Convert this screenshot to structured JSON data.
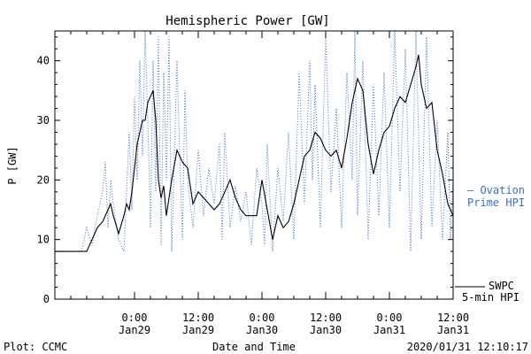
{
  "chart_data": {
    "type": "line",
    "title": "Hemispheric Power [GW]",
    "xlabel": "Date and Time",
    "ylabel": "P [GW]",
    "ylim": [
      0,
      45
    ],
    "xlim": [
      "2020-01-28 09:00",
      "2020-01-31 12:00"
    ],
    "y_ticks": [
      0,
      10,
      20,
      30,
      40
    ],
    "x_ticks": [
      {
        "x": "2020-01-29 00:00",
        "time": "0:00",
        "date": "Jan29"
      },
      {
        "x": "2020-01-29 12:00",
        "time": "12:00",
        "date": "Jan29"
      },
      {
        "x": "2020-01-30 00:00",
        "time": "0:00",
        "date": "Jan30"
      },
      {
        "x": "2020-01-30 12:00",
        "time": "12:00",
        "date": "Jan30"
      },
      {
        "x": "2020-01-31 00:00",
        "time": "0:00",
        "date": "Jan31"
      },
      {
        "x": "2020-01-31 12:00",
        "time": "12:00",
        "date": "Jan31"
      }
    ],
    "grid": false,
    "series": [
      {
        "name": "5-min HPI",
        "source": "SWPC",
        "color": "#000000",
        "style": "solid",
        "points": [
          [
            "2020-01-28 09:00",
            8
          ],
          [
            "2020-01-28 12:00",
            8
          ],
          [
            "2020-01-28 15:00",
            8
          ],
          [
            "2020-01-28 16:00",
            10
          ],
          [
            "2020-01-28 17:00",
            12
          ],
          [
            "2020-01-28 18:00",
            13
          ],
          [
            "2020-01-28 19:00",
            15
          ],
          [
            "2020-01-28 19:30",
            16
          ],
          [
            "2020-01-28 20:00",
            14
          ],
          [
            "2020-01-28 21:00",
            11
          ],
          [
            "2020-01-28 22:00",
            14
          ],
          [
            "2020-01-28 22:30",
            16
          ],
          [
            "2020-01-28 23:00",
            15
          ],
          [
            "2020-01-28 23:30",
            18
          ],
          [
            "2020-01-29 00:00",
            22
          ],
          [
            "2020-01-29 00:30",
            26
          ],
          [
            "2020-01-29 01:00",
            28
          ],
          [
            "2020-01-29 01:30",
            30
          ],
          [
            "2020-01-29 02:00",
            30
          ],
          [
            "2020-01-29 02:30",
            33
          ],
          [
            "2020-01-29 03:00",
            34
          ],
          [
            "2020-01-29 03:30",
            35
          ],
          [
            "2020-01-29 04:00",
            30
          ],
          [
            "2020-01-29 04:30",
            20
          ],
          [
            "2020-01-29 05:00",
            17
          ],
          [
            "2020-01-29 05:30",
            19
          ],
          [
            "2020-01-29 06:00",
            14
          ],
          [
            "2020-01-29 07:00",
            20
          ],
          [
            "2020-01-29 08:00",
            25
          ],
          [
            "2020-01-29 09:00",
            23
          ],
          [
            "2020-01-29 10:00",
            22
          ],
          [
            "2020-01-29 11:00",
            16
          ],
          [
            "2020-01-29 12:00",
            18
          ],
          [
            "2020-01-29 13:00",
            17
          ],
          [
            "2020-01-29 14:00",
            16
          ],
          [
            "2020-01-29 15:00",
            15
          ],
          [
            "2020-01-29 16:00",
            16
          ],
          [
            "2020-01-29 17:00",
            18
          ],
          [
            "2020-01-29 18:00",
            20
          ],
          [
            "2020-01-29 19:00",
            17
          ],
          [
            "2020-01-29 20:00",
            15
          ],
          [
            "2020-01-29 21:00",
            14
          ],
          [
            "2020-01-29 22:00",
            14
          ],
          [
            "2020-01-29 23:00",
            14
          ],
          [
            "2020-01-30 00:00",
            20
          ],
          [
            "2020-01-30 01:00",
            15
          ],
          [
            "2020-01-30 02:00",
            10
          ],
          [
            "2020-01-30 03:00",
            14
          ],
          [
            "2020-01-30 04:00",
            12
          ],
          [
            "2020-01-30 05:00",
            13
          ],
          [
            "2020-01-30 06:00",
            16
          ],
          [
            "2020-01-30 07:00",
            20
          ],
          [
            "2020-01-30 08:00",
            24
          ],
          [
            "2020-01-30 09:00",
            25
          ],
          [
            "2020-01-30 10:00",
            28
          ],
          [
            "2020-01-30 11:00",
            27
          ],
          [
            "2020-01-30 12:00",
            25
          ],
          [
            "2020-01-30 13:00",
            24
          ],
          [
            "2020-01-30 14:00",
            25
          ],
          [
            "2020-01-30 15:00",
            22
          ],
          [
            "2020-01-30 16:00",
            27
          ],
          [
            "2020-01-30 17:00",
            33
          ],
          [
            "2020-01-30 18:00",
            37
          ],
          [
            "2020-01-30 19:00",
            35
          ],
          [
            "2020-01-30 20:00",
            26
          ],
          [
            "2020-01-30 21:00",
            21
          ],
          [
            "2020-01-30 22:00",
            25
          ],
          [
            "2020-01-30 23:00",
            28
          ],
          [
            "2020-01-31 00:00",
            29
          ],
          [
            "2020-01-31 01:00",
            32
          ],
          [
            "2020-01-31 02:00",
            34
          ],
          [
            "2020-01-31 03:00",
            33
          ],
          [
            "2020-01-31 04:00",
            36
          ],
          [
            "2020-01-31 05:00",
            39
          ],
          [
            "2020-01-31 05:30",
            41
          ],
          [
            "2020-01-31 06:00",
            36
          ],
          [
            "2020-01-31 07:00",
            32
          ],
          [
            "2020-01-31 08:00",
            33
          ],
          [
            "2020-01-31 09:00",
            25
          ],
          [
            "2020-01-31 10:00",
            21
          ],
          [
            "2020-01-31 11:00",
            16
          ],
          [
            "2020-01-31 11:30",
            15
          ],
          [
            "2020-01-31 12:00",
            14
          ]
        ]
      },
      {
        "name": "Ovation Prime HPI",
        "color": "#3a6fd0",
        "style": "dotted",
        "points": [
          [
            "2020-01-28 09:00",
            8
          ],
          [
            "2020-01-28 12:00",
            8
          ],
          [
            "2020-01-28 14:00",
            8
          ],
          [
            "2020-01-28 15:00",
            12
          ],
          [
            "2020-01-28 16:00",
            9
          ],
          [
            "2020-01-28 17:00",
            14
          ],
          [
            "2020-01-28 18:00",
            18
          ],
          [
            "2020-01-28 18:30",
            23
          ],
          [
            "2020-01-28 19:00",
            12
          ],
          [
            "2020-01-28 19:30",
            20
          ],
          [
            "2020-01-28 20:00",
            16
          ],
          [
            "2020-01-28 21:00",
            10
          ],
          [
            "2020-01-28 22:00",
            8
          ],
          [
            "2020-01-28 22:30",
            18
          ],
          [
            "2020-01-28 23:00",
            28
          ],
          [
            "2020-01-28 23:30",
            15
          ],
          [
            "2020-01-29 00:00",
            34
          ],
          [
            "2020-01-29 00:30",
            20
          ],
          [
            "2020-01-29 01:00",
            40
          ],
          [
            "2020-01-29 01:30",
            24
          ],
          [
            "2020-01-29 02:00",
            45
          ],
          [
            "2020-01-29 02:30",
            30
          ],
          [
            "2020-01-29 03:00",
            12
          ],
          [
            "2020-01-29 03:30",
            40
          ],
          [
            "2020-01-29 04:00",
            18
          ],
          [
            "2020-01-29 04:30",
            44
          ],
          [
            "2020-01-29 05:00",
            9
          ],
          [
            "2020-01-29 05:30",
            38
          ],
          [
            "2020-01-29 06:00",
            20
          ],
          [
            "2020-01-29 06:30",
            44
          ],
          [
            "2020-01-29 07:00",
            8
          ],
          [
            "2020-01-29 08:00",
            40
          ],
          [
            "2020-01-29 09:00",
            10
          ],
          [
            "2020-01-29 09:30",
            35
          ],
          [
            "2020-01-29 10:00",
            20
          ],
          [
            "2020-01-29 11:00",
            12
          ],
          [
            "2020-01-29 12:00",
            25
          ],
          [
            "2020-01-29 13:00",
            14
          ],
          [
            "2020-01-29 14:00",
            22
          ],
          [
            "2020-01-29 15:00",
            16
          ],
          [
            "2020-01-29 16:00",
            26
          ],
          [
            "2020-01-29 16:30",
            10
          ],
          [
            "2020-01-29 17:00",
            28
          ],
          [
            "2020-01-29 18:00",
            12
          ],
          [
            "2020-01-29 19:00",
            19
          ],
          [
            "2020-01-29 20:00",
            13
          ],
          [
            "2020-01-29 21:00",
            18
          ],
          [
            "2020-01-29 22:00",
            9
          ],
          [
            "2020-01-29 23:00",
            22
          ],
          [
            "2020-01-30 00:00",
            16
          ],
          [
            "2020-01-30 00:30",
            9
          ],
          [
            "2020-01-30 01:00",
            26
          ],
          [
            "2020-01-30 02:00",
            8
          ],
          [
            "2020-01-30 03:00",
            22
          ],
          [
            "2020-01-30 04:00",
            13
          ],
          [
            "2020-01-30 05:00",
            28
          ],
          [
            "2020-01-30 06:00",
            10
          ],
          [
            "2020-01-30 07:00",
            38
          ],
          [
            "2020-01-30 08:00",
            16
          ],
          [
            "2020-01-30 09:00",
            40
          ],
          [
            "2020-01-30 09:30",
            20
          ],
          [
            "2020-01-30 10:00",
            36
          ],
          [
            "2020-01-30 11:00",
            12
          ],
          [
            "2020-01-30 12:00",
            44
          ],
          [
            "2020-01-30 13:00",
            18
          ],
          [
            "2020-01-30 14:00",
            32
          ],
          [
            "2020-01-30 15:00",
            12
          ],
          [
            "2020-01-30 16:00",
            38
          ],
          [
            "2020-01-30 17:00",
            20
          ],
          [
            "2020-01-30 17:30",
            45
          ],
          [
            "2020-01-30 18:00",
            14
          ],
          [
            "2020-01-30 19:00",
            40
          ],
          [
            "2020-01-30 20:00",
            10
          ],
          [
            "2020-01-30 21:00",
            36
          ],
          [
            "2020-01-30 22:00",
            14
          ],
          [
            "2020-01-30 23:00",
            38
          ],
          [
            "2020-01-31 00:00",
            12
          ],
          [
            "2020-01-31 01:00",
            45
          ],
          [
            "2020-01-31 02:00",
            18
          ],
          [
            "2020-01-31 03:00",
            42
          ],
          [
            "2020-01-31 04:00",
            8
          ],
          [
            "2020-01-31 05:00",
            45
          ],
          [
            "2020-01-31 06:00",
            10
          ],
          [
            "2020-01-31 07:00",
            44
          ],
          [
            "2020-01-31 08:00",
            12
          ],
          [
            "2020-01-31 09:00",
            30
          ],
          [
            "2020-01-31 10:00",
            10
          ],
          [
            "2020-01-31 11:00",
            28
          ],
          [
            "2020-01-31 11:30",
            10
          ],
          [
            "2020-01-31 12:00",
            20
          ]
        ]
      }
    ],
    "legend": [
      {
        "text": "— Ovation",
        "color": "#3a6fd0"
      },
      {
        "text": "Prime HPI",
        "color": "#3a6fd0"
      },
      {
        "text": "SWPC",
        "color": "#000000"
      },
      {
        "text": "5-min HPI",
        "color": "#000000"
      }
    ],
    "legend_placement": "right"
  },
  "footer": {
    "left": "Plot: CCMC",
    "center": "Date and Time",
    "right": "2020/01/31 12:10:17"
  }
}
